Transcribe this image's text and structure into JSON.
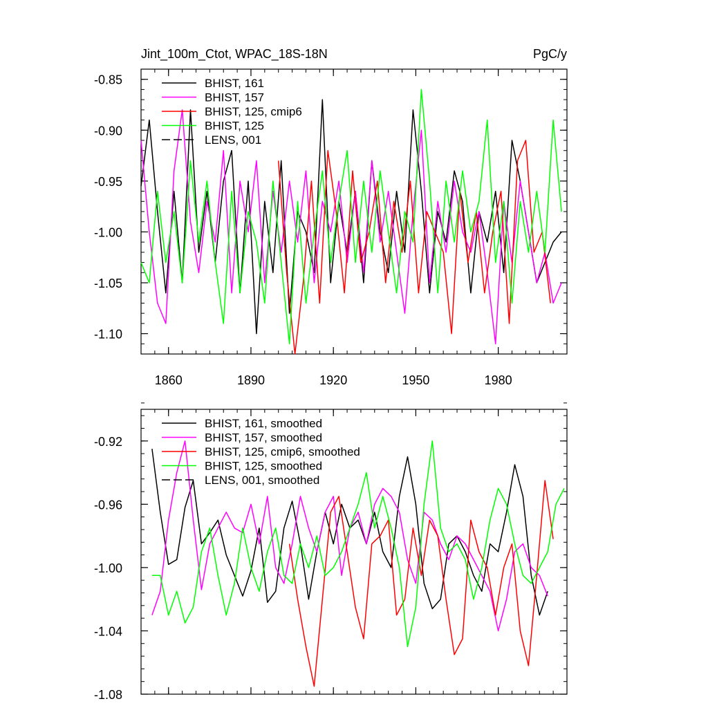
{
  "chart_data": [
    {
      "type": "line",
      "title_left": "Jint_100m_Ctot, WPAC_18S-18N",
      "title_right": "PgC/y",
      "xlabel": "",
      "ylabel": "",
      "xlim": [
        1850,
        2005
      ],
      "ylim": [
        -1.12,
        -0.84
      ],
      "xticks": [
        1860,
        1890,
        1920,
        1950,
        1980
      ],
      "xtick_labels": [
        "1860",
        "1890",
        "1920",
        "1950",
        "1980"
      ],
      "yticks": [
        -0.85,
        -0.9,
        -0.95,
        -1.0,
        -1.05,
        -1.1
      ],
      "ytick_labels": [
        "-0.85",
        "-0.90",
        "-0.95",
        "-1.00",
        "-1.05",
        "-1.10"
      ],
      "legend_placement": "top-left",
      "series": [
        {
          "name": "BHIST, 161",
          "color": "#000000",
          "dash": false,
          "x": [
            1850,
            1853,
            1856,
            1859,
            1862,
            1865,
            1868,
            1871,
            1874,
            1877,
            1880,
            1883,
            1886,
            1889,
            1892,
            1895,
            1898,
            1901,
            1904,
            1907,
            1910,
            1913,
            1916,
            1919,
            1922,
            1925,
            1928,
            1931,
            1934,
            1937,
            1940,
            1943,
            1946,
            1949,
            1952,
            1955,
            1958,
            1961,
            1964,
            1967,
            1970,
            1973,
            1976,
            1979,
            1982,
            1985,
            1988,
            1991,
            1994,
            1997,
            2000,
            2003
          ],
          "y": [
            -0.955,
            -0.89,
            -0.98,
            -1.06,
            -0.96,
            -1.05,
            -0.88,
            -1.02,
            -0.96,
            -1.03,
            -0.95,
            -0.92,
            -1.06,
            -0.95,
            -1.1,
            -0.97,
            -1.04,
            -0.93,
            -1.08,
            -0.98,
            -1.0,
            -1.04,
            -0.87,
            -1.05,
            -0.97,
            -1.02,
            -0.96,
            -1.05,
            -0.93,
            -1.0,
            -1.04,
            -0.96,
            -1.02,
            -0.88,
            -0.96,
            -1.06,
            -0.98,
            -1.01,
            -0.94,
            -0.97,
            -1.06,
            -0.98,
            -1.01,
            -0.96,
            -1.04,
            -0.91,
            -0.95,
            -1.0,
            -1.05,
            -1.03,
            -1.01,
            -1.0
          ]
        },
        {
          "name": "BHIST, 157",
          "color": "#ff00ff",
          "dash": false,
          "x": [
            1850,
            1853,
            1856,
            1859,
            1862,
            1865,
            1868,
            1871,
            1874,
            1877,
            1880,
            1883,
            1886,
            1889,
            1892,
            1895,
            1898,
            1901,
            1904,
            1907,
            1910,
            1913,
            1916,
            1919,
            1922,
            1925,
            1928,
            1931,
            1934,
            1937,
            1940,
            1943,
            1946,
            1949,
            1952,
            1955,
            1958,
            1961,
            1964,
            1967,
            1970,
            1973,
            1976,
            1979,
            1982,
            1985,
            1988,
            1991,
            1994,
            1997,
            2000,
            2003
          ],
          "y": [
            -0.91,
            -1.0,
            -1.07,
            -1.09,
            -0.94,
            -0.88,
            -0.99,
            -1.04,
            -0.97,
            -1.01,
            -0.92,
            -1.06,
            -0.95,
            -1.0,
            -0.93,
            -1.05,
            -0.96,
            -1.02,
            -0.95,
            -1.01,
            -0.94,
            -1.05,
            -0.97,
            -1.0,
            -0.95,
            -1.03,
            -0.96,
            -1.04,
            -0.93,
            -1.01,
            -0.96,
            -1.02,
            -1.08,
            -0.98,
            -0.9,
            -1.05,
            -0.97,
            -1.02,
            -0.95,
            -1.0,
            -1.02,
            -0.98,
            -1.04,
            -1.11,
            -0.97,
            -1.03,
            -0.95,
            -1.0,
            -1.05,
            -1.02,
            -1.07,
            -1.05
          ]
        },
        {
          "name": "BHIST, 125, cmip6",
          "color": "#ff0000",
          "dash": false,
          "x": [
            1900,
            1903,
            1906,
            1909,
            1912,
            1915,
            1918,
            1921,
            1924,
            1927,
            1930,
            1933,
            1936,
            1939,
            1942,
            1945,
            1948,
            1951,
            1954,
            1957,
            1960,
            1963,
            1966,
            1969,
            1972,
            1975,
            1978,
            1981,
            1984,
            1987,
            1990,
            1993,
            1996,
            1999
          ],
          "y": [
            -0.93,
            -1.04,
            -1.12,
            -1.05,
            -0.95,
            -1.07,
            -0.92,
            -0.98,
            -1.06,
            -0.94,
            -1.03,
            -1.0,
            -0.95,
            -1.05,
            -0.97,
            -1.02,
            -0.95,
            -1.06,
            -0.98,
            -1.0,
            -1.02,
            -1.1,
            -0.96,
            -1.03,
            -0.98,
            -1.06,
            -1.0,
            -0.96,
            -1.09,
            -0.93,
            -0.91,
            -1.02,
            -1.0,
            -1.07
          ]
        },
        {
          "name": "BHIST, 125",
          "color": "#00ff00",
          "dash": false,
          "x": [
            1850,
            1853,
            1856,
            1859,
            1862,
            1865,
            1868,
            1871,
            1874,
            1877,
            1880,
            1883,
            1886,
            1889,
            1892,
            1895,
            1898,
            1901,
            1904,
            1907,
            1910,
            1913,
            1916,
            1919,
            1922,
            1925,
            1928,
            1931,
            1934,
            1937,
            1940,
            1943,
            1946,
            1949,
            1952,
            1955,
            1958,
            1961,
            1964,
            1967,
            1970,
            1973,
            1976,
            1979,
            1982,
            1985,
            1988,
            1991,
            1994,
            1997,
            2000,
            2003
          ],
          "y": [
            -1.03,
            -1.05,
            -0.96,
            -1.03,
            -0.98,
            -1.05,
            -0.93,
            -1.01,
            -0.95,
            -1.03,
            -1.09,
            -0.96,
            -1.06,
            -0.98,
            -1.01,
            -1.07,
            -0.95,
            -1.03,
            -1.11,
            -0.97,
            -1.07,
            -1.0,
            -0.94,
            -1.03,
            -0.97,
            -0.92,
            -1.03,
            -0.95,
            -1.02,
            -0.94,
            -1.0,
            -1.06,
            -0.98,
            -1.01,
            -0.86,
            -0.95,
            -1.06,
            -0.95,
            -1.01,
            -0.94,
            -1.0,
            -0.97,
            -0.89,
            -1.03,
            -0.97,
            -1.07,
            -0.97,
            -1.02,
            -0.96,
            -1.02,
            -0.89,
            -0.98
          ]
        },
        {
          "name": "LENS, 001",
          "color": "#000000",
          "dash": true,
          "x": [],
          "y": []
        }
      ]
    },
    {
      "type": "line",
      "xlabel": "",
      "ylabel": "",
      "xlim": [
        1850,
        2005
      ],
      "ylim": [
        -1.08,
        -0.9
      ],
      "yticks": [
        -0.92,
        -0.96,
        -1.0,
        -1.04,
        -1.08
      ],
      "ytick_labels": [
        "-0.92",
        "-0.96",
        "-1.00",
        "-1.04",
        "-1.08"
      ],
      "legend_placement": "top-left",
      "series": [
        {
          "name": "BHIST, 161, smoothed",
          "color": "#000000",
          "dash": false,
          "x": [
            1854,
            1857,
            1860,
            1863,
            1866,
            1869,
            1872,
            1875,
            1878,
            1881,
            1884,
            1887,
            1890,
            1893,
            1896,
            1899,
            1902,
            1905,
            1908,
            1911,
            1914,
            1917,
            1920,
            1923,
            1926,
            1929,
            1932,
            1935,
            1938,
            1941,
            1944,
            1947,
            1950,
            1953,
            1956,
            1959,
            1962,
            1965,
            1968,
            1971,
            1974,
            1977,
            1980,
            1983,
            1986,
            1989,
            1992,
            1995,
            1998
          ],
          "y": [
            -0.925,
            -0.965,
            -0.998,
            -0.995,
            -0.962,
            -0.945,
            -0.985,
            -0.978,
            -0.97,
            -0.992,
            -1.005,
            -1.018,
            -1.002,
            -0.975,
            -1.022,
            -1.015,
            -0.975,
            -0.958,
            -0.985,
            -1.02,
            -0.99,
            -0.965,
            -0.985,
            -0.96,
            -0.975,
            -0.97,
            -0.985,
            -0.965,
            -0.99,
            -1.0,
            -0.955,
            -0.93,
            -0.96,
            -1.01,
            -1.026,
            -1.02,
            -0.985,
            -0.98,
            -0.99,
            -1.005,
            -1.015,
            -0.985,
            -0.99,
            -0.965,
            -0.935,
            -0.955,
            -1.005,
            -1.03,
            -1.015
          ]
        },
        {
          "name": "BHIST, 157, smoothed",
          "color": "#ff00ff",
          "dash": false,
          "x": [
            1854,
            1857,
            1860,
            1863,
            1866,
            1869,
            1872,
            1875,
            1878,
            1881,
            1884,
            1887,
            1890,
            1893,
            1896,
            1899,
            1902,
            1905,
            1908,
            1911,
            1914,
            1917,
            1920,
            1923,
            1926,
            1929,
            1932,
            1935,
            1938,
            1941,
            1944,
            1947,
            1950,
            1953,
            1956,
            1959,
            1962,
            1965,
            1968,
            1971,
            1974,
            1977,
            1980,
            1983,
            1986,
            1989,
            1992,
            1995,
            1998
          ],
          "y": [
            -1.03,
            -1.015,
            -0.97,
            -0.94,
            -0.92,
            -0.97,
            -1.014,
            -0.985,
            -0.975,
            -0.965,
            -0.975,
            -0.978,
            -0.96,
            -0.985,
            -0.955,
            -1.0,
            -1.01,
            -0.985,
            -0.955,
            -0.975,
            -0.99,
            -0.965,
            -0.955,
            -1.005,
            -0.975,
            -0.965,
            -0.985,
            -0.96,
            -0.95,
            -0.955,
            -0.965,
            -0.995,
            -1.01,
            -0.965,
            -0.97,
            -0.985,
            -0.995,
            -0.98,
            -0.985,
            -0.995,
            -1.005,
            -1.015,
            -1.04,
            -1.02,
            -0.99,
            -0.985,
            -1.0,
            -1.005,
            -1.018
          ]
        },
        {
          "name": "BHIST, 125, cmip6, smoothed",
          "color": "#ff0000",
          "dash": false,
          "x": [
            1904,
            1907,
            1910,
            1913,
            1916,
            1919,
            1922,
            1925,
            1928,
            1931,
            1934,
            1937,
            1940,
            1943,
            1946,
            1949,
            1952,
            1955,
            1958,
            1961,
            1964,
            1967,
            1970,
            1973,
            1976,
            1979,
            1982,
            1985,
            1988,
            1991,
            1994,
            1997,
            2000
          ],
          "y": [
            -0.985,
            -1.02,
            -1.05,
            -1.075,
            -1.02,
            -0.965,
            -0.955,
            -0.99,
            -1.025,
            -1.045,
            -0.985,
            -0.98,
            -0.97,
            -1.03,
            -1.02,
            -0.975,
            -1.005,
            -0.97,
            -0.98,
            -1.02,
            -1.055,
            -1.045,
            -0.97,
            -0.99,
            -1.0,
            -1.03,
            -1.0,
            -0.985,
            -1.04,
            -1.062,
            -1.005,
            -0.945,
            -0.982
          ]
        },
        {
          "name": "BHIST, 125, smoothed",
          "color": "#00ff00",
          "dash": false,
          "x": [
            1854,
            1857,
            1860,
            1863,
            1866,
            1869,
            1872,
            1875,
            1878,
            1881,
            1884,
            1887,
            1890,
            1893,
            1896,
            1899,
            1902,
            1905,
            1908,
            1911,
            1914,
            1917,
            1920,
            1923,
            1926,
            1929,
            1932,
            1935,
            1938,
            1941,
            1944,
            1947,
            1950,
            1953,
            1956,
            1959,
            1962,
            1965,
            1968,
            1971,
            1974,
            1977,
            1980,
            1983,
            1986,
            1989,
            1992,
            1995,
            1998,
            2001,
            2004
          ],
          "y": [
            -1.005,
            -1.005,
            -1.03,
            -1.015,
            -1.035,
            -1.025,
            -0.99,
            -0.975,
            -1.005,
            -1.03,
            -1.01,
            -0.975,
            -1.0,
            -1.015,
            -0.99,
            -0.975,
            -1.005,
            -1.01,
            -0.985,
            -1.0,
            -0.98,
            -1.005,
            -1.0,
            -0.99,
            -0.975,
            -0.96,
            -0.94,
            -0.975,
            -0.955,
            -0.975,
            -1.0,
            -1.05,
            -1.025,
            -0.96,
            -0.92,
            -0.975,
            -0.99,
            -0.985,
            -0.995,
            -1.02,
            -1.0,
            -0.97,
            -0.95,
            -0.96,
            -0.985,
            -1.005,
            -1.01,
            -1.0,
            -0.99,
            -0.96,
            -0.95
          ]
        },
        {
          "name": "LENS, 001, smoothed",
          "color": "#000000",
          "dash": true,
          "x": [],
          "y": []
        }
      ]
    }
  ]
}
